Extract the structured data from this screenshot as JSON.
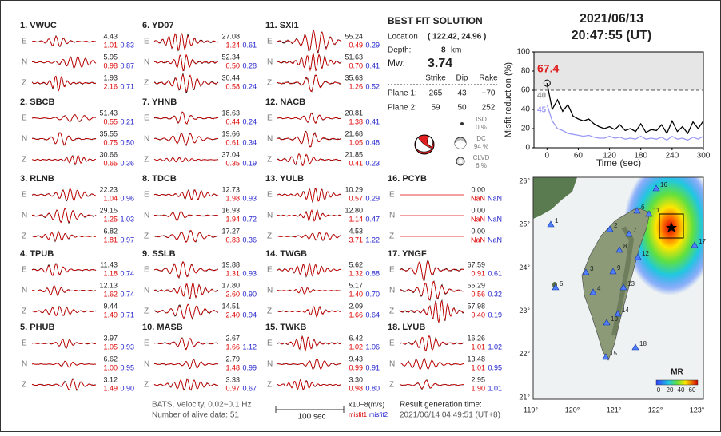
{
  "header": {
    "date": "2021/06/13",
    "time": "20:47:55  (UT)"
  },
  "stations": [
    {
      "label": "1.  VWUC",
      "components": [
        {
          "comp": "E",
          "amplitude": "4.43",
          "misfit1": "1.01",
          "misfit2": "0.83"
        },
        {
          "comp": "N",
          "amplitude": "5.95",
          "misfit1": "0.98",
          "misfit2": "0.87"
        },
        {
          "comp": "Z",
          "amplitude": "1.93",
          "misfit1": "2.16",
          "misfit2": "0.71"
        }
      ]
    },
    {
      "label": "2.  SBCB",
      "components": [
        {
          "comp": "E",
          "amplitude": "51.43",
          "misfit1": "0.55",
          "misfit2": "0.21"
        },
        {
          "comp": "N",
          "amplitude": "35.55",
          "misfit1": "0.75",
          "misfit2": "0.50"
        },
        {
          "comp": "Z",
          "amplitude": "30.66",
          "misfit1": "0.65",
          "misfit2": "0.36"
        }
      ]
    },
    {
      "label": "3.  RLNB",
      "components": [
        {
          "comp": "E",
          "amplitude": "22.23",
          "misfit1": "1.04",
          "misfit2": "0.96"
        },
        {
          "comp": "N",
          "amplitude": "29.15",
          "misfit1": "1.25",
          "misfit2": "1.03"
        },
        {
          "comp": "Z",
          "amplitude": "6.82",
          "misfit1": "1.81",
          "misfit2": "0.97"
        }
      ]
    },
    {
      "label": "4.  TPUB",
      "components": [
        {
          "comp": "E",
          "amplitude": "11.43",
          "misfit1": "1.18",
          "misfit2": "0.74"
        },
        {
          "comp": "N",
          "amplitude": "12.13",
          "misfit1": "1.62",
          "misfit2": "0.74"
        },
        {
          "comp": "Z",
          "amplitude": "9.44",
          "misfit1": "1.49",
          "misfit2": "0.71"
        }
      ]
    },
    {
      "label": "5.  PHUB",
      "components": [
        {
          "comp": "E",
          "amplitude": "3.97",
          "misfit1": "1.05",
          "misfit2": "0.93"
        },
        {
          "comp": "N",
          "amplitude": "6.62",
          "misfit1": "1.00",
          "misfit2": "0.95"
        },
        {
          "comp": "Z",
          "amplitude": "3.12",
          "misfit1": "1.49",
          "misfit2": "0.90"
        }
      ]
    },
    {
      "label": "6.  YD07",
      "components": [
        {
          "comp": "E",
          "amplitude": "27.08",
          "misfit1": "1.24",
          "misfit2": "0.61"
        },
        {
          "comp": "N",
          "amplitude": "52.34",
          "misfit1": "0.50",
          "misfit2": "0.28"
        },
        {
          "comp": "Z",
          "amplitude": "30.44",
          "misfit1": "0.58",
          "misfit2": "0.24"
        }
      ]
    },
    {
      "label": "7.  YHNB",
      "components": [
        {
          "comp": "E",
          "amplitude": "18.63",
          "misfit1": "0.44",
          "misfit2": "0.24"
        },
        {
          "comp": "N",
          "amplitude": "19.66",
          "misfit1": "0.61",
          "misfit2": "0.34"
        },
        {
          "comp": "Z",
          "amplitude": "37.04",
          "misfit1": "0.35",
          "misfit2": "0.19"
        }
      ]
    },
    {
      "label": "8.  TDCB",
      "components": [
        {
          "comp": "E",
          "amplitude": "12.73",
          "misfit1": "1.98",
          "misfit2": "0.93"
        },
        {
          "comp": "N",
          "amplitude": "16.93",
          "misfit1": "1.94",
          "misfit2": "0.72"
        },
        {
          "comp": "Z",
          "amplitude": "17.27",
          "misfit1": "0.83",
          "misfit2": "0.36"
        }
      ]
    },
    {
      "label": "9.  SSLB",
      "components": [
        {
          "comp": "E",
          "amplitude": "19.88",
          "misfit1": "1.31",
          "misfit2": "0.93"
        },
        {
          "comp": "N",
          "amplitude": "17.80",
          "misfit1": "2.60",
          "misfit2": "0.90"
        },
        {
          "comp": "Z",
          "amplitude": "14.51",
          "misfit1": "2.40",
          "misfit2": "0.94"
        }
      ]
    },
    {
      "label": "10. MASB",
      "components": [
        {
          "comp": "E",
          "amplitude": "2.67",
          "misfit1": "1.66",
          "misfit2": "1.12"
        },
        {
          "comp": "N",
          "amplitude": "2.79",
          "misfit1": "1.48",
          "misfit2": "0.99"
        },
        {
          "comp": "Z",
          "amplitude": "3.33",
          "misfit1": "0.97",
          "misfit2": "0.67"
        }
      ]
    },
    {
      "label": "11. SXI1",
      "components": [
        {
          "comp": "E",
          "amplitude": "55.24",
          "misfit1": "0.49",
          "misfit2": "0.29"
        },
        {
          "comp": "N",
          "amplitude": "51.63",
          "misfit1": "0.70",
          "misfit2": "0.41"
        },
        {
          "comp": "Z",
          "amplitude": "35.63",
          "misfit1": "1.26",
          "misfit2": "0.52"
        }
      ]
    },
    {
      "label": "12. NACB",
      "components": [
        {
          "comp": "E",
          "amplitude": "20.81",
          "misfit1": "1.38",
          "misfit2": "0.41"
        },
        {
          "comp": "N",
          "amplitude": "21.68",
          "misfit1": "1.05",
          "misfit2": "0.48"
        },
        {
          "comp": "Z",
          "amplitude": "21.85",
          "misfit1": "0.41",
          "misfit2": "0.23"
        }
      ]
    },
    {
      "label": "13. YULB",
      "components": [
        {
          "comp": "E",
          "amplitude": "10.29",
          "misfit1": "0.57",
          "misfit2": "0.29"
        },
        {
          "comp": "N",
          "amplitude": "12.80",
          "misfit1": "1.14",
          "misfit2": "0.47"
        },
        {
          "comp": "Z",
          "amplitude": "4.53",
          "misfit1": "3.71",
          "misfit2": "1.22"
        }
      ]
    },
    {
      "label": "14. TWGB",
      "components": [
        {
          "comp": "E",
          "amplitude": "5.62",
          "misfit1": "1.32",
          "misfit2": "0.88"
        },
        {
          "comp": "N",
          "amplitude": "5.17",
          "misfit1": "1.40",
          "misfit2": "0.70"
        },
        {
          "comp": "Z",
          "amplitude": "2.09",
          "misfit1": "1.66",
          "misfit2": "0.64"
        }
      ]
    },
    {
      "label": "15. TWKB",
      "components": [
        {
          "comp": "E",
          "amplitude": "6.42",
          "misfit1": "1.02",
          "misfit2": "1.06"
        },
        {
          "comp": "N",
          "amplitude": "9.43",
          "misfit1": "0.99",
          "misfit2": "0.91"
        },
        {
          "comp": "Z",
          "amplitude": "3.30",
          "misfit1": "0.98",
          "misfit2": "0.80"
        }
      ]
    },
    {
      "label": "16. PCYB",
      "components": [
        {
          "comp": "E",
          "amplitude": "0.00",
          "misfit1": "NaN",
          "misfit2": "NaN"
        },
        {
          "comp": "N",
          "amplitude": "0.00",
          "misfit1": "NaN",
          "misfit2": "NaN"
        },
        {
          "comp": "Z",
          "amplitude": "0.00",
          "misfit1": "NaN",
          "misfit2": "NaN"
        }
      ]
    },
    {
      "label": "17. YNGF",
      "components": [
        {
          "comp": "E",
          "amplitude": "67.59",
          "misfit1": "0.91",
          "misfit2": "0.61"
        },
        {
          "comp": "N",
          "amplitude": "55.29",
          "misfit1": "0.56",
          "misfit2": "0.32"
        },
        {
          "comp": "Z",
          "amplitude": "57.98",
          "misfit1": "0.40",
          "misfit2": "0.19"
        }
      ]
    },
    {
      "label": "18. LYUB",
      "components": [
        {
          "comp": "E",
          "amplitude": "16.26",
          "misfit1": "1.01",
          "misfit2": "1.02"
        },
        {
          "comp": "N",
          "amplitude": "13.48",
          "misfit1": "1.01",
          "misfit2": "0.95"
        },
        {
          "comp": "Z",
          "amplitude": "2.95",
          "misfit1": "1.90",
          "misfit2": "1.01"
        }
      ]
    }
  ],
  "solution": {
    "title": "BEST FIT SOLUTION",
    "location_label": "Location",
    "location": "( 122.42, 24.96 )",
    "depth_label": "Depth:",
    "depth": "8",
    "depth_unit": "km",
    "mw_label": "Mw:",
    "mw": "3.74",
    "columns": [
      "Strike",
      "Dip",
      "Rake"
    ],
    "planes": [
      {
        "label": "Plane 1:",
        "values": [
          "265",
          "43",
          "−70"
        ]
      },
      {
        "label": "Plane 2:",
        "values": [
          "59",
          "50",
          "252"
        ]
      }
    ],
    "components": [
      {
        "name": "ISO",
        "percent": "0 %"
      },
      {
        "name": "DC",
        "percent": "94 %"
      },
      {
        "name": "CLVD",
        "percent": "6 %"
      }
    ]
  },
  "chart_data": {
    "type": "line",
    "y_label": "Misfit reduction (%)",
    "x_label": "Time (sec)",
    "xlim": [
      -25,
      300
    ],
    "ylim": [
      0,
      100
    ],
    "xticks": [
      0,
      60,
      120,
      180,
      240,
      300
    ],
    "yticks": [
      0,
      20,
      40,
      60,
      80,
      100
    ],
    "threshold": 60,
    "x": [
      0,
      10,
      20,
      30,
      40,
      50,
      60,
      70,
      80,
      90,
      100,
      110,
      120,
      130,
      140,
      150,
      160,
      170,
      180,
      190,
      200,
      210,
      220,
      230,
      240,
      250,
      260,
      270,
      280,
      290,
      300
    ],
    "series": [
      {
        "color": "#000000",
        "values": [
          67.4,
          40,
          50,
          38,
          45,
          33,
          30,
          28,
          30,
          25,
          22,
          20,
          22,
          19,
          24,
          18,
          20,
          17,
          25,
          16,
          19,
          18,
          24,
          15,
          28,
          17,
          22,
          15,
          27,
          20,
          28
        ]
      },
      {
        "color": "#9a9af5",
        "values": [
          45,
          28,
          20,
          18,
          15,
          14,
          13,
          12,
          13,
          11,
          10,
          10,
          12,
          10,
          11,
          9,
          10,
          9,
          12,
          9,
          10,
          9,
          11,
          8,
          12,
          9,
          10,
          8,
          11,
          9,
          12
        ]
      }
    ],
    "annotations": [
      {
        "text": "67.4",
        "color": "#e02020"
      },
      {
        "text": "40",
        "color": "#999999"
      },
      {
        "text": "45",
        "color": "#9a9af5"
      }
    ]
  },
  "map": {
    "lon_labels": [
      "119°",
      "120°",
      "121°",
      "122°",
      "123°"
    ],
    "lat_labels": [
      "26°",
      "25°",
      "24°",
      "23°",
      "22°",
      "21°"
    ],
    "station_labels": [
      "1",
      "2",
      "3",
      "4",
      "5",
      "6",
      "7",
      "8",
      "9",
      "10",
      "11",
      "12",
      "13",
      "14",
      "15",
      "16",
      "17",
      "18"
    ],
    "colorbar_title": "MR",
    "colorbar_ticks": [
      "0",
      "20",
      "40",
      "60"
    ]
  },
  "footer": {
    "filter": "BATS, Velocity, 0.02~0.1 Hz",
    "alive": "Number of alive data: 51",
    "scale": "100 sec",
    "unit": "x10−8(m/s)",
    "misfit1": "misfit1",
    "misfit2": "misfit2",
    "result_label": "Result generation time:",
    "result_time": "2021/06/14 04:49:51 (UT+8)"
  }
}
